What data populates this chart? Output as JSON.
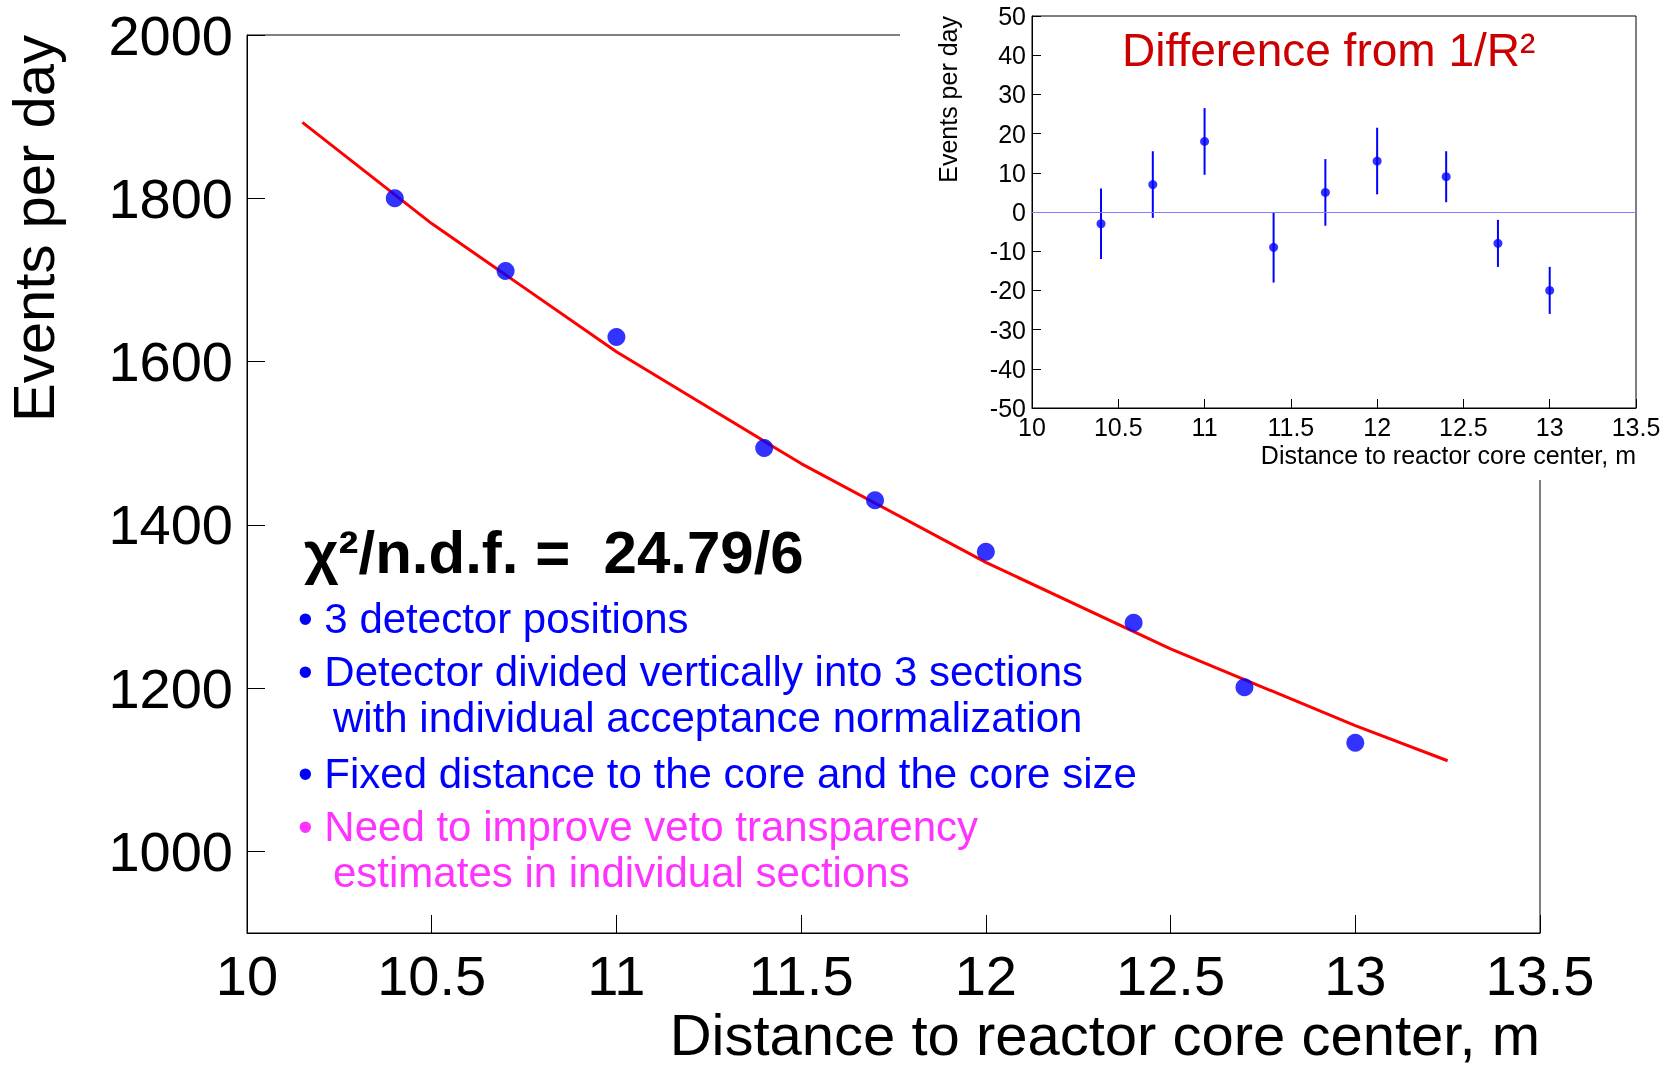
{
  "chart_data": [
    {
      "type": "scatter",
      "xlabel": "Distance to reactor core center, m",
      "ylabel": "Events per day",
      "x": [
        10.4,
        10.7,
        11.0,
        11.4,
        11.7,
        12.0,
        12.4,
        12.7,
        13.0
      ],
      "xlim": [
        10,
        13.5
      ],
      "xticks": [
        10,
        10.5,
        11,
        11.5,
        12,
        12.5,
        13,
        13.5
      ],
      "ylim": [
        900,
        2000
      ],
      "yticks": [
        1000,
        1200,
        1400,
        1600,
        1800,
        2000
      ],
      "grid": false,
      "series": [
        {
          "type": "scatter",
          "color": "#0000ff",
          "marker": "circle",
          "values": [
            1800,
            1711,
            1630,
            1494,
            1430,
            1367,
            1280,
            1201,
            1133
          ]
        },
        {
          "type": "line",
          "color": "#ff0000",
          "marker": "none",
          "x": [
            10.15,
            10.5,
            11,
            11.5,
            12,
            12.5,
            13,
            13.25
          ],
          "values": [
            1893,
            1769,
            1612,
            1475,
            1354,
            1248,
            1154,
            1111
          ]
        }
      ],
      "annotations": [
        "χ²/n.d.f. =  24.79/6",
        "• 3 detector positions",
        "• Detector divided vertically into 3 sections\n   with individual acceptance normalization",
        "• Fixed distance to the core and the core size",
        "• Need to improve veto transparency\n   estimates in individual sections"
      ]
    },
    {
      "type": "scatter",
      "title": "Difference from 1/R²",
      "xlabel": "Distance to reactor core center, m",
      "ylabel": "Events per day",
      "x": [
        10.4,
        10.7,
        11.0,
        11.4,
        11.7,
        12.0,
        12.4,
        12.7,
        13.0
      ],
      "xlim": [
        10,
        13.5
      ],
      "xticks": [
        10,
        10.5,
        11,
        11.5,
        12,
        12.5,
        13,
        13.5
      ],
      "ylim": [
        -50,
        50
      ],
      "yticks": [
        -50,
        -40,
        -30,
        -20,
        -10,
        0,
        10,
        20,
        30,
        40,
        50
      ],
      "grid": false,
      "marker": "circle",
      "color": "#0000ff",
      "values": [
        -3,
        7,
        18,
        -9,
        5,
        13,
        9,
        -8,
        -20
      ],
      "errors": [
        9,
        8.5,
        8.5,
        9,
        8.5,
        8.5,
        6.5,
        6,
        6
      ],
      "ref_lines": [
        {
          "axis": "y",
          "value": 0,
          "color": "#8080ff"
        }
      ]
    }
  ]
}
